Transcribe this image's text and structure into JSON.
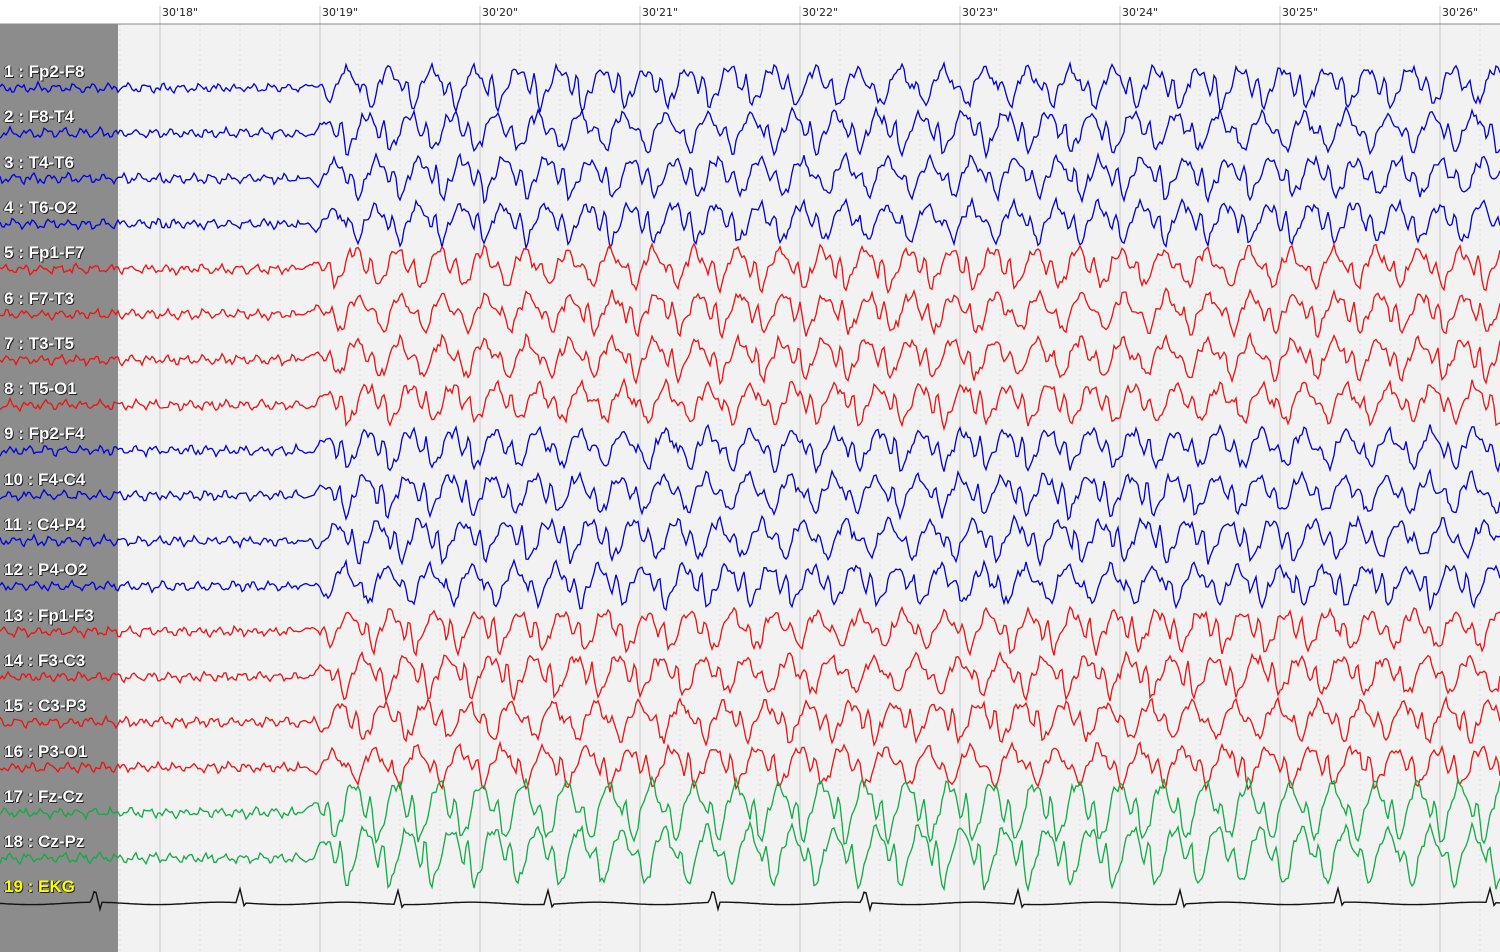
{
  "time_labels": [
    "30'18\"",
    "30'19\"",
    "30'20\"",
    "30'21\"",
    "30'22\"",
    "30'23\"",
    "30'24\"",
    "30'25\"",
    "30'26\""
  ],
  "channels": [
    {
      "label": "1 : Fp2-F8",
      "color": "#0000dd"
    },
    {
      "label": "2 : F8-T4",
      "color": "#0000dd"
    },
    {
      "label": "3 : T4-T6",
      "color": "#0000dd"
    },
    {
      "label": "4 : T6-O2",
      "color": "#0000dd"
    },
    {
      "label": "5 : Fp1-F7",
      "color": "#ee1111"
    },
    {
      "label": "6 : F7-T3",
      "color": "#ee1111"
    },
    {
      "label": "7 : T3-T5",
      "color": "#ee1111"
    },
    {
      "label": "8 : T5-O1",
      "color": "#ee1111"
    },
    {
      "label": "9 : Fp2-F4",
      "color": "#0000dd"
    },
    {
      "label": "10 : F4-C4",
      "color": "#0000dd"
    },
    {
      "label": "11 : C4-P4",
      "color": "#0000dd"
    },
    {
      "label": "12 : P4-O2",
      "color": "#0000dd"
    },
    {
      "label": "13 : Fp1-F3",
      "color": "#ee1111"
    },
    {
      "label": "14 : F3-C3",
      "color": "#ee1111"
    },
    {
      "label": "15 : C3-P3",
      "color": "#ee1111"
    },
    {
      "label": "16 : P3-O1",
      "color": "#ee1111"
    },
    {
      "label": "17 : Fz-Cz",
      "color": "#11aa44"
    },
    {
      "label": "18 : Cz-Pz",
      "color": "#11aa44"
    },
    {
      "label": "19 : EKG",
      "color": "#111111",
      "label_color": "#ffff00"
    }
  ],
  "colors": {
    "panel": "#8c8c8c",
    "background": "#f2f2f2",
    "grid": "#c8c8c8"
  }
}
